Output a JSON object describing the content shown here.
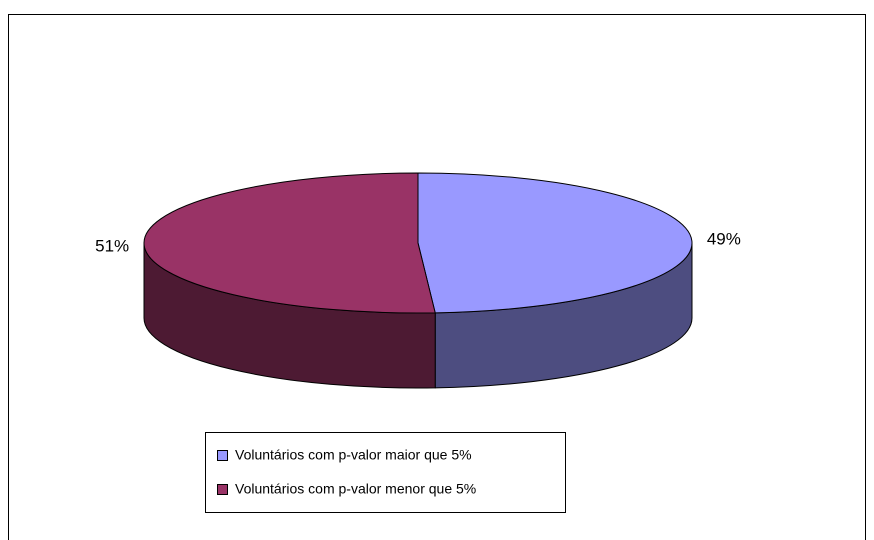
{
  "chart_data": {
    "type": "pie3d",
    "categories": [
      "Voluntários com p-valor maior que 5%",
      "Voluntários com p-valor menor que 5%"
    ],
    "values": [
      49,
      51
    ],
    "value_labels": [
      "49%",
      "51%"
    ],
    "colors": [
      "#9999ff",
      "#993366"
    ],
    "legend": "bottom"
  }
}
